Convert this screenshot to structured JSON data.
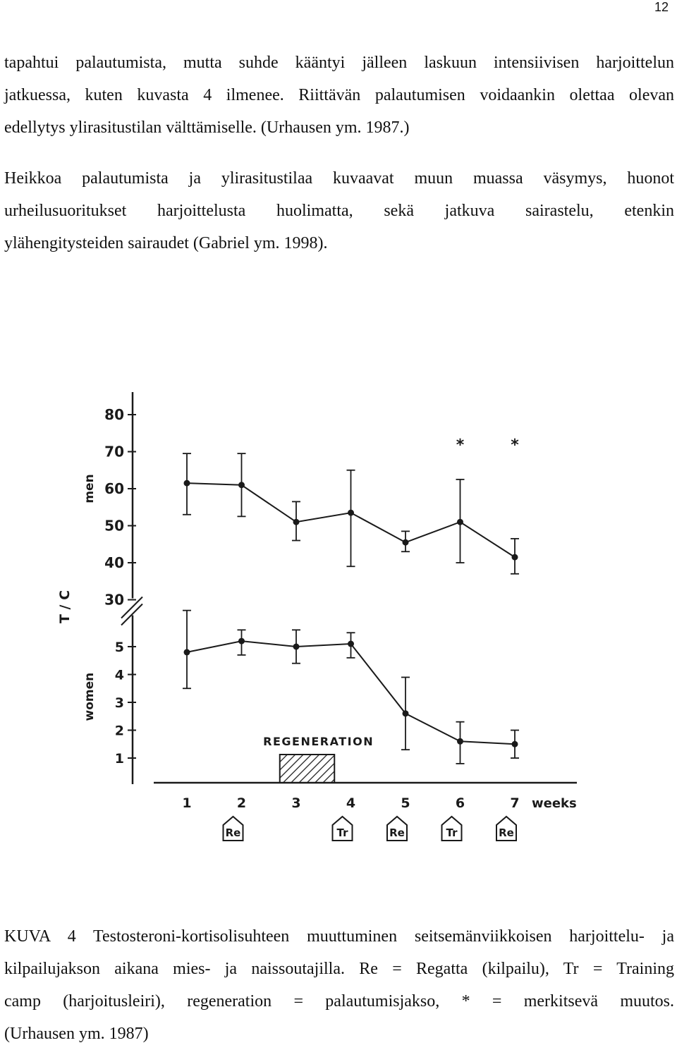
{
  "page_number": "12",
  "paragraph1": {
    "lines": [
      "tapahtui palautumista, mutta suhde kääntyi jälleen laskuun intensiivisen harjoittelun",
      "jatkuessa, kuten kuvasta 4 ilmenee. Riittävän palautumisen voidaankin olettaa olevan",
      "edellytys ylirasitustilan välttämiselle. (Urhausen ym. 1987.)"
    ]
  },
  "paragraph2": {
    "lines": [
      "Heikkoa palautumista ja ylirasitustilaa kuvaavat muun muassa väsymys, huonot",
      "urheilusuoritukset harjoittelusta huolimatta, sekä jatkuva sairastelu, etenkin",
      "ylähengitysteiden sairaudet (Gabriel ym. 1998)."
    ]
  },
  "caption": {
    "lines": [
      "KUVA 4 Testosteroni-kortisolisuhteen muuttuminen seitsemänviikkoisen harjoittelu- ja",
      "kilpailujakson aikana mies- ja naissoutajilla. Re = Regatta (kilpailu), Tr = Training",
      "camp (harjoitusleiri), regeneration = palautumisjakso, * = merkitsevä muutos.",
      "(Urhausen ym. 1987)"
    ]
  },
  "chart_data": {
    "type": "line",
    "ylabel": "T / C",
    "xlabel": "weeks",
    "x": [
      1,
      2,
      3,
      4,
      5,
      6,
      7
    ],
    "x_tick_labels": [
      "1",
      "2",
      "3",
      "4",
      "5",
      "6",
      "7"
    ],
    "series": [
      {
        "name": "men",
        "values": [
          61.5,
          61,
          51,
          53.5,
          45.5,
          51,
          41.5
        ],
        "error_low": [
          53,
          52.5,
          46,
          39,
          43,
          40,
          37
        ],
        "error_high": [
          69.5,
          69.5,
          56.5,
          65,
          48.5,
          62.5,
          46.5
        ],
        "significant": [
          false,
          false,
          false,
          false,
          false,
          true,
          true
        ],
        "significance_marker": "*"
      },
      {
        "name": "women",
        "values": [
          4.8,
          5.2,
          5.0,
          5.1,
          2.6,
          1.6,
          1.5
        ],
        "error_low": [
          3.5,
          4.7,
          4.4,
          4.6,
          1.3,
          0.8,
          1.0
        ],
        "error_high": [
          6.3,
          5.6,
          5.6,
          5.5,
          3.9,
          2.3,
          2.0
        ],
        "significant": [
          false,
          false,
          false,
          false,
          false,
          false,
          false
        ],
        "significance_marker": "*"
      }
    ],
    "men_y_ticks": [
      "30",
      "40",
      "50",
      "60",
      "70",
      "80"
    ],
    "women_y_ticks": [
      "1",
      "2",
      "3",
      "4",
      "5"
    ],
    "axis_break": true,
    "regeneration": {
      "label": "REGENERATION",
      "from_week": 2.7,
      "to_week": 3.7
    },
    "week_markers": [
      {
        "week": 2,
        "label": "Re"
      },
      {
        "week": 4,
        "label": "Tr"
      },
      {
        "week": 5,
        "label": "Re"
      },
      {
        "week": 6,
        "label": "Tr"
      },
      {
        "week": 7,
        "label": "Re"
      }
    ]
  }
}
